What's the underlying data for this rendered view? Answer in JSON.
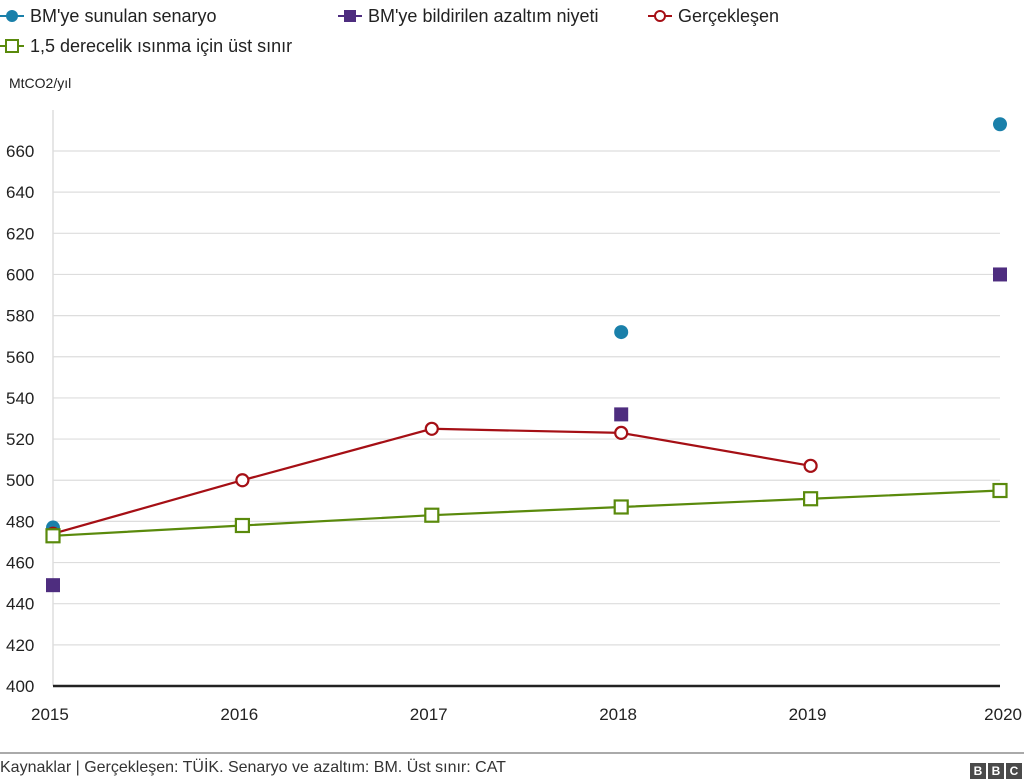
{
  "chart_data": {
    "type": "line",
    "title": "",
    "xlabel": "",
    "ylabel": "MtCO2/yıl",
    "x": [
      2015,
      2016,
      2017,
      2018,
      2019,
      2020
    ],
    "x_ticks": [
      "2015",
      "2016",
      "2017",
      "2018",
      "2019",
      "2020"
    ],
    "ylim": [
      400,
      670
    ],
    "y_ticks": [
      400,
      420,
      440,
      460,
      480,
      500,
      520,
      540,
      560,
      580,
      600,
      620,
      640,
      660
    ],
    "grid": true,
    "legend_position": "top-left",
    "series": [
      {
        "name": "BM'ye sunulan senaryo",
        "marker": "circle-filled",
        "line": false,
        "color": "#1a80aa",
        "values": [
          477,
          null,
          null,
          572,
          null,
          673
        ]
      },
      {
        "name": "BM'ye bildirilen azaltım niyeti",
        "marker": "square-filled",
        "line": false,
        "color": "#4e2d7f",
        "values": [
          449,
          null,
          null,
          532,
          null,
          600
        ]
      },
      {
        "name": "Gerçekleşen",
        "marker": "circle-open",
        "line": true,
        "color": "#a50f15",
        "values": [
          474,
          500,
          525,
          523,
          507,
          null
        ]
      },
      {
        "name": "1,5 derecelik ısınma için üst sınır",
        "marker": "square-open",
        "line": true,
        "color": "#5a8a0c",
        "values": [
          473,
          478,
          483,
          487,
          491,
          495
        ]
      }
    ]
  },
  "legend": [
    {
      "label": "BM'ye sunulan senaryo"
    },
    {
      "label": "BM'ye bildirilen azaltım niyeti"
    },
    {
      "label": "Gerçekleşen"
    },
    {
      "label": "1,5 derecelik ısınma için üst sınır"
    }
  ],
  "unit_label": "MtCO2/yıl",
  "footer": {
    "source": "Kaynaklar | Gerçekleşen: TÜİK. Senaryo ve azaltım: BM. Üst sınır: CAT",
    "logo": [
      "B",
      "B",
      "C"
    ]
  }
}
